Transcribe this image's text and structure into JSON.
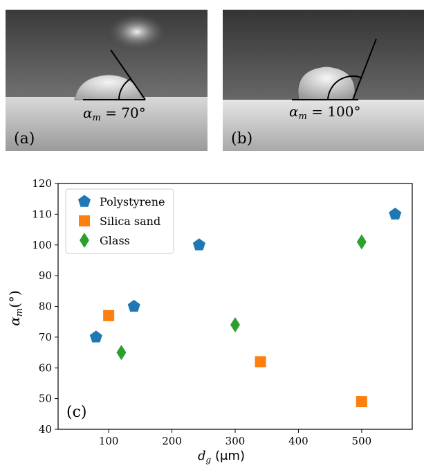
{
  "photos": [
    {
      "panel_label": "(a)",
      "angle_label": "α_m = 70°",
      "angle_symbol": "α",
      "angle_sub": "m",
      "angle_value": " = 70°",
      "angle_deg": 70
    },
    {
      "panel_label": "(b)",
      "angle_label": "α_m = 100°",
      "angle_symbol": "α",
      "angle_sub": "m",
      "angle_value": " = 100°",
      "angle_deg": 100
    }
  ],
  "colors": {
    "polystyrene": "#1f77b4",
    "silica_sand": "#ff7f0e",
    "glass": "#2ca02c"
  },
  "chart_data": {
    "type": "scatter",
    "panel_label": "(c)",
    "xlabel": "d_g (μm)",
    "xlabel_symbol": "d",
    "xlabel_sub": "g",
    "xlabel_unit": " (μm)",
    "ylabel": "α_m(°)",
    "ylabel_symbol": "α",
    "ylabel_sub": "m",
    "ylabel_unit": "(°)",
    "xlim": [
      20,
      580
    ],
    "ylim": [
      40,
      120
    ],
    "xticks": [
      100,
      200,
      300,
      400,
      500
    ],
    "yticks": [
      40,
      50,
      60,
      70,
      80,
      90,
      100,
      110,
      120
    ],
    "legend_position": "top-left",
    "grid": false,
    "series": [
      {
        "name": "Polystyrene",
        "marker": "pentagon",
        "color": "#1f77b4",
        "points": [
          [
            80,
            70
          ],
          [
            140,
            80
          ],
          [
            243,
            100
          ],
          [
            553,
            110
          ]
        ]
      },
      {
        "name": "Silica sand",
        "marker": "square",
        "color": "#ff7f0e",
        "points": [
          [
            100,
            77
          ],
          [
            340,
            62
          ],
          [
            500,
            49
          ]
        ]
      },
      {
        "name": "Glass",
        "marker": "diamond",
        "color": "#2ca02c",
        "points": [
          [
            120,
            65
          ],
          [
            300,
            74
          ],
          [
            500,
            101
          ]
        ]
      }
    ]
  }
}
